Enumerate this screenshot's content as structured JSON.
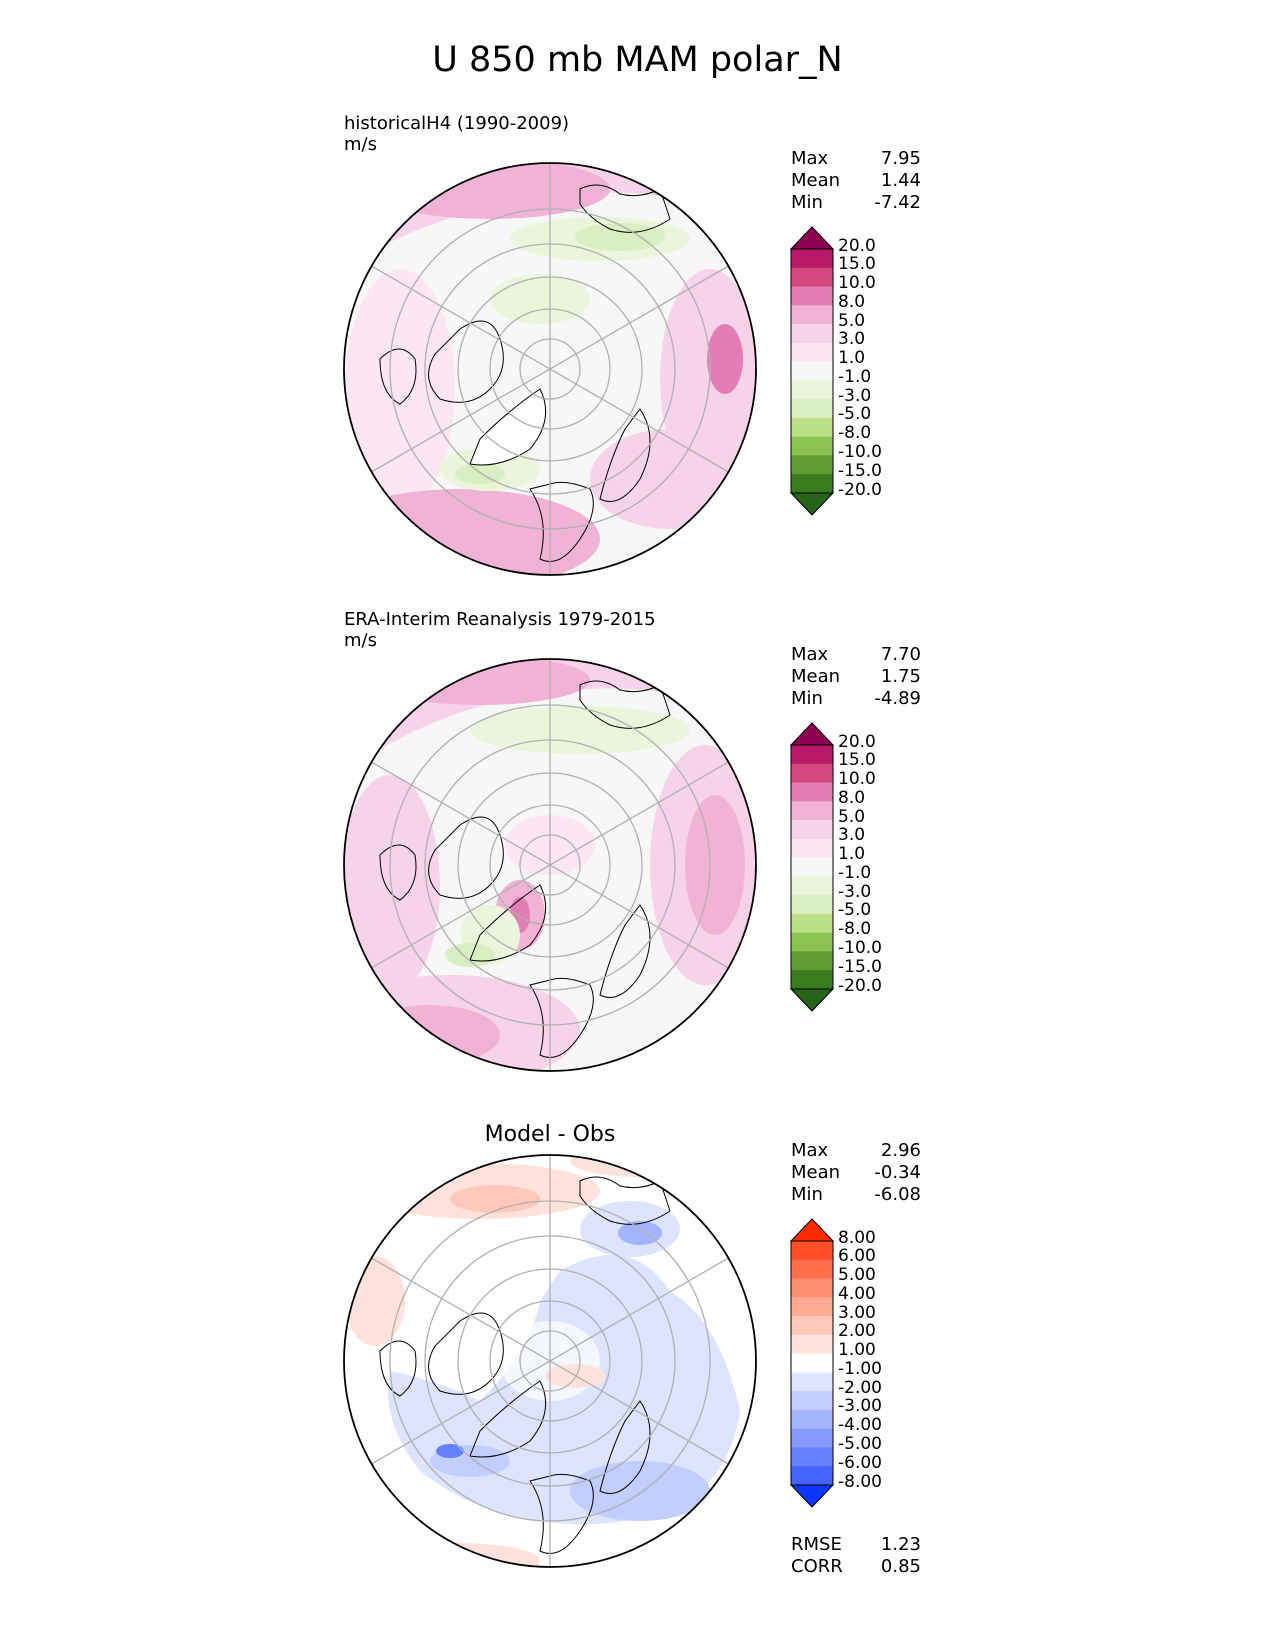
{
  "page": {
    "title": "U 850 mb MAM polar_N"
  },
  "panels": [
    {
      "id": "model",
      "title_line1": "historicalH4 (1990-2009)",
      "title_line2": "m/s",
      "stats": [
        {
          "label": "Max",
          "value": "7.95"
        },
        {
          "label": "Mean",
          "value": "1.44"
        },
        {
          "label": "Min",
          "value": "-7.42"
        }
      ],
      "colorbar": {
        "labels": [
          "20.0",
          "15.0",
          "10.0",
          "8.0",
          "5.0",
          "3.0",
          "1.0",
          "-1.0",
          "-3.0",
          "-5.0",
          "-8.0",
          "-10.0",
          "-15.0",
          "-20.0"
        ],
        "colors": [
          "#8e0152",
          "#b8196b",
          "#d5477f",
          "#e37eb4",
          "#f0b3d6",
          "#f7d3e9",
          "#fbe6f2",
          "#f7f7f7",
          "#ebf5dc",
          "#d9efc2",
          "#b8e186",
          "#8cc252",
          "#5f9b32",
          "#3b7d1e",
          "#276419"
        ]
      },
      "legend_colors": {
        "top": "#8e0152",
        "bottom": "#276419"
      }
    },
    {
      "id": "obs",
      "title_line1": "ERA-Interim Reanalysis 1979-2015",
      "title_line2": "m/s",
      "stats": [
        {
          "label": "Max",
          "value": "7.70"
        },
        {
          "label": "Mean",
          "value": "1.75"
        },
        {
          "label": "Min",
          "value": "-4.89"
        }
      ],
      "colorbar": {
        "labels": [
          "20.0",
          "15.0",
          "10.0",
          "8.0",
          "5.0",
          "3.0",
          "1.0",
          "-1.0",
          "-3.0",
          "-5.0",
          "-8.0",
          "-10.0",
          "-15.0",
          "-20.0"
        ],
        "colors": [
          "#8e0152",
          "#b8196b",
          "#d5477f",
          "#e37eb4",
          "#f0b3d6",
          "#f7d3e9",
          "#fbe6f2",
          "#f7f7f7",
          "#ebf5dc",
          "#d9efc2",
          "#b8e186",
          "#8cc252",
          "#5f9b32",
          "#3b7d1e",
          "#276419"
        ]
      }
    },
    {
      "id": "diff",
      "title": "Model - Obs",
      "stats": [
        {
          "label": "Max",
          "value": "2.96"
        },
        {
          "label": "Mean",
          "value": "-0.34"
        },
        {
          "label": "Min",
          "value": "-6.08"
        }
      ],
      "colorbar": {
        "labels": [
          "8.00",
          "6.00",
          "5.00",
          "4.00",
          "3.00",
          "2.00",
          "1.00",
          "-1.00",
          "-2.00",
          "-3.00",
          "-4.00",
          "-5.00",
          "-6.00",
          "-8.00"
        ],
        "colors": [
          "#ff2a00",
          "#ff4d26",
          "#ff6e4a",
          "#ff8e70",
          "#ffaa94",
          "#ffc8b8",
          "#ffe3da",
          "#ffffff",
          "#dde4ff",
          "#c2ceff",
          "#a3b5ff",
          "#8499ff",
          "#6480ff",
          "#4463ff",
          "#0d37ff"
        ]
      },
      "metrics": [
        {
          "label": "RMSE",
          "value": "1.23"
        },
        {
          "label": "CORR",
          "value": "0.85"
        }
      ]
    }
  ]
}
